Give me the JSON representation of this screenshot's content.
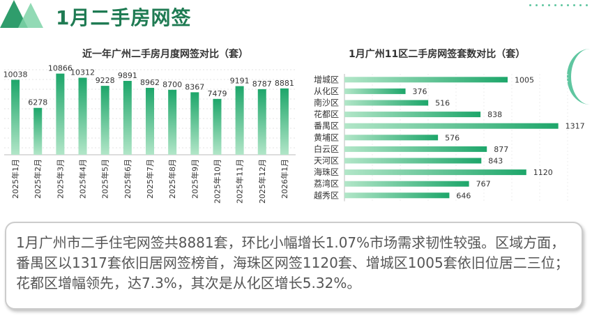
{
  "header": {
    "title": "1月二手房网签"
  },
  "summary": {
    "text": "1月广州市二手住宅网签共8881套，环比小幅增长1.07%市场需求韧性较强。区域方面，番禺区以1317套依旧居网签榜首，海珠区网签1120套、增城区1005套依旧位居二三位；花都区增幅领先，达7.3%，其次是从化区增长5.32%。"
  },
  "colors": {
    "accent": "#1f7b53",
    "bar_light": "#a4e0bd",
    "bar_dark": "#1da66a"
  },
  "chart_data": [
    {
      "type": "bar",
      "orientation": "vertical",
      "title": "近一年广州二手房月度网签对比（套）",
      "categories": [
        "2025年1月",
        "2025年2月",
        "2025年3月",
        "2025年4月",
        "2025年5月",
        "2025年6月",
        "2025年7月",
        "2025年8月",
        "2025年9月",
        "2025年10月",
        "2025年11月",
        "2025年12月",
        "2026年1月"
      ],
      "values": [
        10038,
        6278,
        10866,
        10312,
        9228,
        9891,
        8962,
        8700,
        8367,
        7479,
        9191,
        8787,
        8881
      ],
      "grid": true
    },
    {
      "type": "bar",
      "orientation": "horizontal",
      "title": "1月广州11区二手房网签套数对比（套）",
      "categories": [
        "增城区",
        "从化区",
        "南沙区",
        "花都区",
        "番禺区",
        "黄埔区",
        "白云区",
        "天河区",
        "海珠区",
        "荔湾区",
        "越秀区"
      ],
      "values": [
        1005,
        376,
        516,
        838,
        1317,
        576,
        877,
        843,
        1120,
        767,
        646
      ],
      "grid": true
    }
  ]
}
